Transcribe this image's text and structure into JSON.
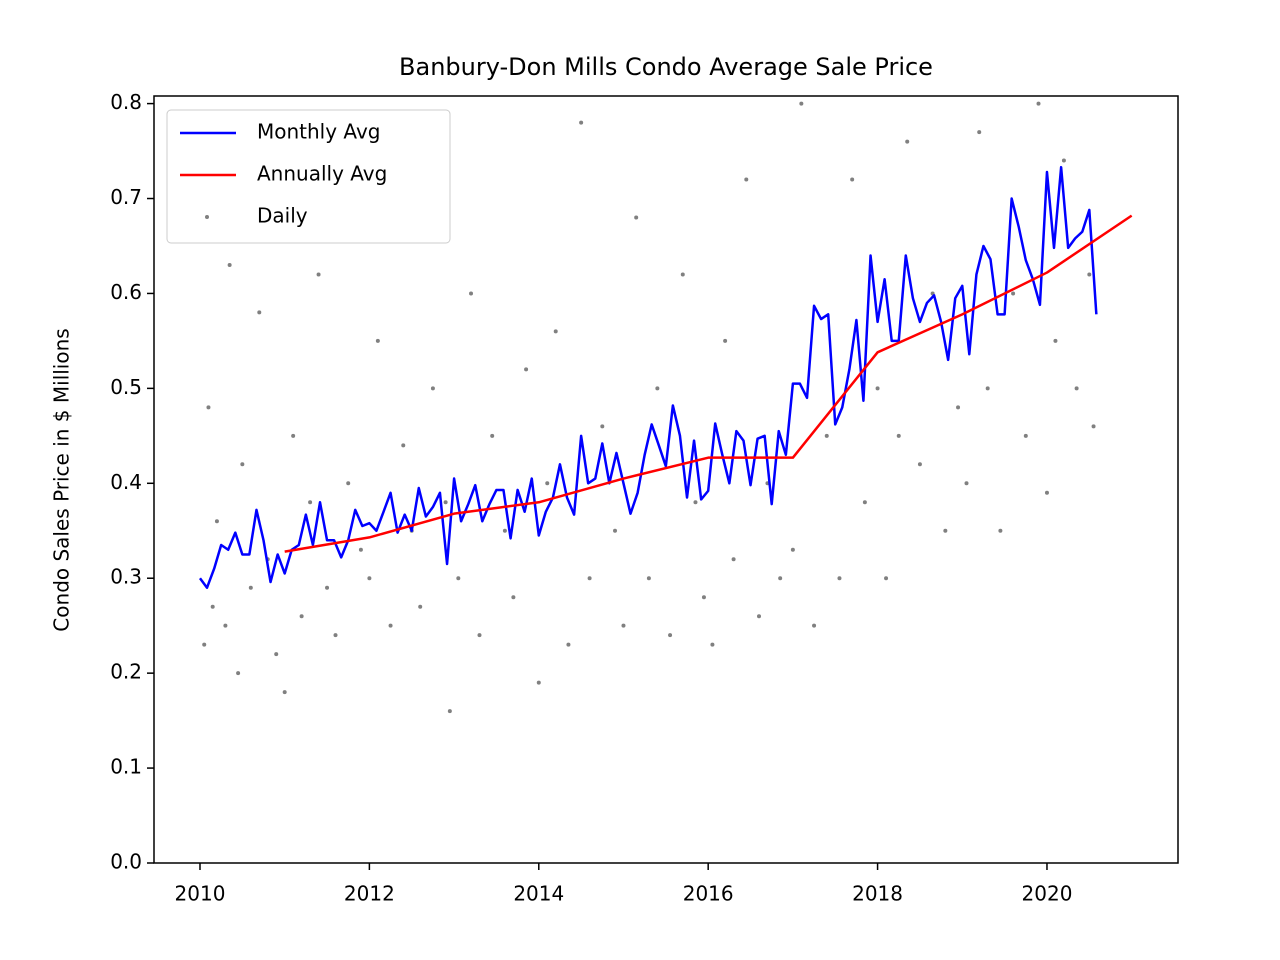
{
  "chart_data": {
    "type": "line",
    "title": "Banbury-Don Mills Condo Average Sale Price",
    "y_label": "Condo Sales Price in $ Millions",
    "xlim": [
      2009.457,
      2021.547
    ],
    "ylim": [
      0,
      0.808
    ],
    "xticks": [
      2010,
      2012,
      2014,
      2016,
      2018,
      2020
    ],
    "yticks": [
      {
        "value": 0,
        "label": "0.0"
      },
      0.1,
      0.2,
      0.3,
      0.4,
      0.5,
      0.6,
      0.7,
      0.8
    ],
    "legend": "upper left",
    "series": [
      {
        "name": "Monthly Avg",
        "style": "line",
        "color": "#0000ff",
        "x": [
          2010.0,
          2010.083,
          2010.167,
          2010.25,
          2010.333,
          2010.417,
          2010.5,
          2010.583,
          2010.667,
          2010.75,
          2010.833,
          2010.917,
          2011.0,
          2011.083,
          2011.167,
          2011.25,
          2011.333,
          2011.417,
          2011.5,
          2011.583,
          2011.667,
          2011.75,
          2011.833,
          2011.917,
          2012.0,
          2012.083,
          2012.167,
          2012.25,
          2012.333,
          2012.417,
          2012.5,
          2012.583,
          2012.667,
          2012.75,
          2012.833,
          2012.917,
          2013.0,
          2013.083,
          2013.167,
          2013.25,
          2013.333,
          2013.417,
          2013.5,
          2013.583,
          2013.667,
          2013.75,
          2013.833,
          2013.917,
          2014.0,
          2014.083,
          2014.167,
          2014.25,
          2014.333,
          2014.417,
          2014.5,
          2014.583,
          2014.667,
          2014.75,
          2014.833,
          2014.917,
          2015.0,
          2015.083,
          2015.167,
          2015.25,
          2015.333,
          2015.417,
          2015.5,
          2015.583,
          2015.667,
          2015.75,
          2015.833,
          2015.917,
          2016.0,
          2016.083,
          2016.167,
          2016.25,
          2016.333,
          2016.417,
          2016.5,
          2016.583,
          2016.667,
          2016.75,
          2016.833,
          2016.917,
          2017.0,
          2017.083,
          2017.167,
          2017.25,
          2017.333,
          2017.417,
          2017.5,
          2017.583,
          2017.667,
          2017.75,
          2017.833,
          2017.917,
          2018.0,
          2018.083,
          2018.167,
          2018.25,
          2018.333,
          2018.417,
          2018.5,
          2018.583,
          2018.667,
          2018.75,
          2018.833,
          2018.917,
          2019.0,
          2019.083,
          2019.167,
          2019.25,
          2019.333,
          2019.417,
          2019.5,
          2019.583,
          2019.667,
          2019.75,
          2019.833,
          2019.917,
          2020.0,
          2020.083,
          2020.167,
          2020.25,
          2020.333,
          2020.417,
          2020.5,
          2020.583
        ],
        "values": [
          0.3,
          0.29,
          0.31,
          0.335,
          0.33,
          0.348,
          0.325,
          0.325,
          0.372,
          0.34,
          0.296,
          0.325,
          0.305,
          0.33,
          0.335,
          0.367,
          0.335,
          0.38,
          0.34,
          0.34,
          0.322,
          0.34,
          0.372,
          0.355,
          0.358,
          0.35,
          0.37,
          0.39,
          0.348,
          0.367,
          0.35,
          0.395,
          0.365,
          0.375,
          0.39,
          0.315,
          0.405,
          0.36,
          0.378,
          0.398,
          0.36,
          0.378,
          0.393,
          0.393,
          0.342,
          0.393,
          0.37,
          0.405,
          0.345,
          0.37,
          0.385,
          0.42,
          0.385,
          0.367,
          0.45,
          0.4,
          0.405,
          0.442,
          0.4,
          0.432,
          0.4,
          0.368,
          0.39,
          0.43,
          0.462,
          0.44,
          0.418,
          0.482,
          0.45,
          0.385,
          0.445,
          0.383,
          0.392,
          0.463,
          0.43,
          0.4,
          0.455,
          0.445,
          0.398,
          0.447,
          0.45,
          0.378,
          0.455,
          0.43,
          0.505,
          0.505,
          0.49,
          0.587,
          0.573,
          0.578,
          0.462,
          0.48,
          0.52,
          0.572,
          0.487,
          0.64,
          0.57,
          0.615,
          0.55,
          0.55,
          0.64,
          0.595,
          0.57,
          0.59,
          0.598,
          0.57,
          0.53,
          0.595,
          0.608,
          0.536,
          0.62,
          0.65,
          0.636,
          0.578,
          0.578,
          0.7,
          0.67,
          0.635,
          0.615,
          0.588,
          0.728,
          0.648,
          0.733,
          0.648,
          0.658,
          0.665,
          0.688,
          0.578
        ]
      },
      {
        "name": "Annually Avg",
        "style": "line",
        "color": "#ff0000",
        "x": [
          2011,
          2012,
          2013,
          2014,
          2015,
          2016,
          2017,
          2018,
          2019,
          2020,
          2021
        ],
        "values": [
          0.328,
          0.343,
          0.368,
          0.38,
          0.405,
          0.427,
          0.427,
          0.538,
          0.578,
          0.622,
          0.682
        ]
      },
      {
        "name": "Daily",
        "style": "scatter",
        "color": "#808080",
        "x": [
          2010.05,
          2010.1,
          2010.15,
          2010.2,
          2010.3,
          2010.35,
          2010.45,
          2010.5,
          2010.6,
          2010.7,
          2010.8,
          2010.9,
          2011.0,
          2011.1,
          2011.2,
          2011.3,
          2011.4,
          2011.5,
          2011.6,
          2011.75,
          2011.9,
          2012.0,
          2012.1,
          2012.25,
          2012.4,
          2012.5,
          2012.6,
          2012.75,
          2012.9,
          2012.95,
          2013.05,
          2013.2,
          2013.3,
          2013.45,
          2013.6,
          2013.7,
          2013.85,
          2014.0,
          2014.1,
          2014.2,
          2014.35,
          2014.5,
          2014.6,
          2014.75,
          2014.9,
          2015.0,
          2015.15,
          2015.3,
          2015.4,
          2015.55,
          2015.7,
          2015.85,
          2015.95,
          2016.05,
          2016.2,
          2016.3,
          2016.45,
          2016.6,
          2016.7,
          2016.85,
          2017.0,
          2017.1,
          2017.25,
          2017.4,
          2017.55,
          2017.7,
          2017.85,
          2018.0,
          2018.1,
          2018.25,
          2018.35,
          2018.5,
          2018.65,
          2018.8,
          2018.95,
          2019.05,
          2019.2,
          2019.3,
          2019.45,
          2019.6,
          2019.75,
          2019.9,
          2020.0,
          2020.1,
          2020.2,
          2020.35,
          2020.5,
          2020.55
        ],
        "values": [
          0.23,
          0.48,
          0.27,
          0.36,
          0.25,
          0.63,
          0.2,
          0.42,
          0.29,
          0.58,
          0.32,
          0.22,
          0.18,
          0.45,
          0.26,
          0.38,
          0.62,
          0.29,
          0.24,
          0.4,
          0.33,
          0.3,
          0.55,
          0.25,
          0.44,
          0.35,
          0.27,
          0.5,
          0.38,
          0.16,
          0.3,
          0.6,
          0.24,
          0.45,
          0.35,
          0.28,
          0.52,
          0.19,
          0.4,
          0.56,
          0.23,
          0.78,
          0.3,
          0.46,
          0.35,
          0.25,
          0.68,
          0.3,
          0.5,
          0.24,
          0.62,
          0.38,
          0.28,
          0.23,
          0.55,
          0.32,
          0.72,
          0.26,
          0.4,
          0.3,
          0.33,
          0.8,
          0.25,
          0.45,
          0.3,
          0.72,
          0.38,
          0.5,
          0.3,
          0.45,
          0.76,
          0.42,
          0.6,
          0.35,
          0.48,
          0.4,
          0.77,
          0.5,
          0.35,
          0.6,
          0.45,
          0.8,
          0.39,
          0.55,
          0.74,
          0.5,
          0.62,
          0.46
        ]
      }
    ]
  }
}
